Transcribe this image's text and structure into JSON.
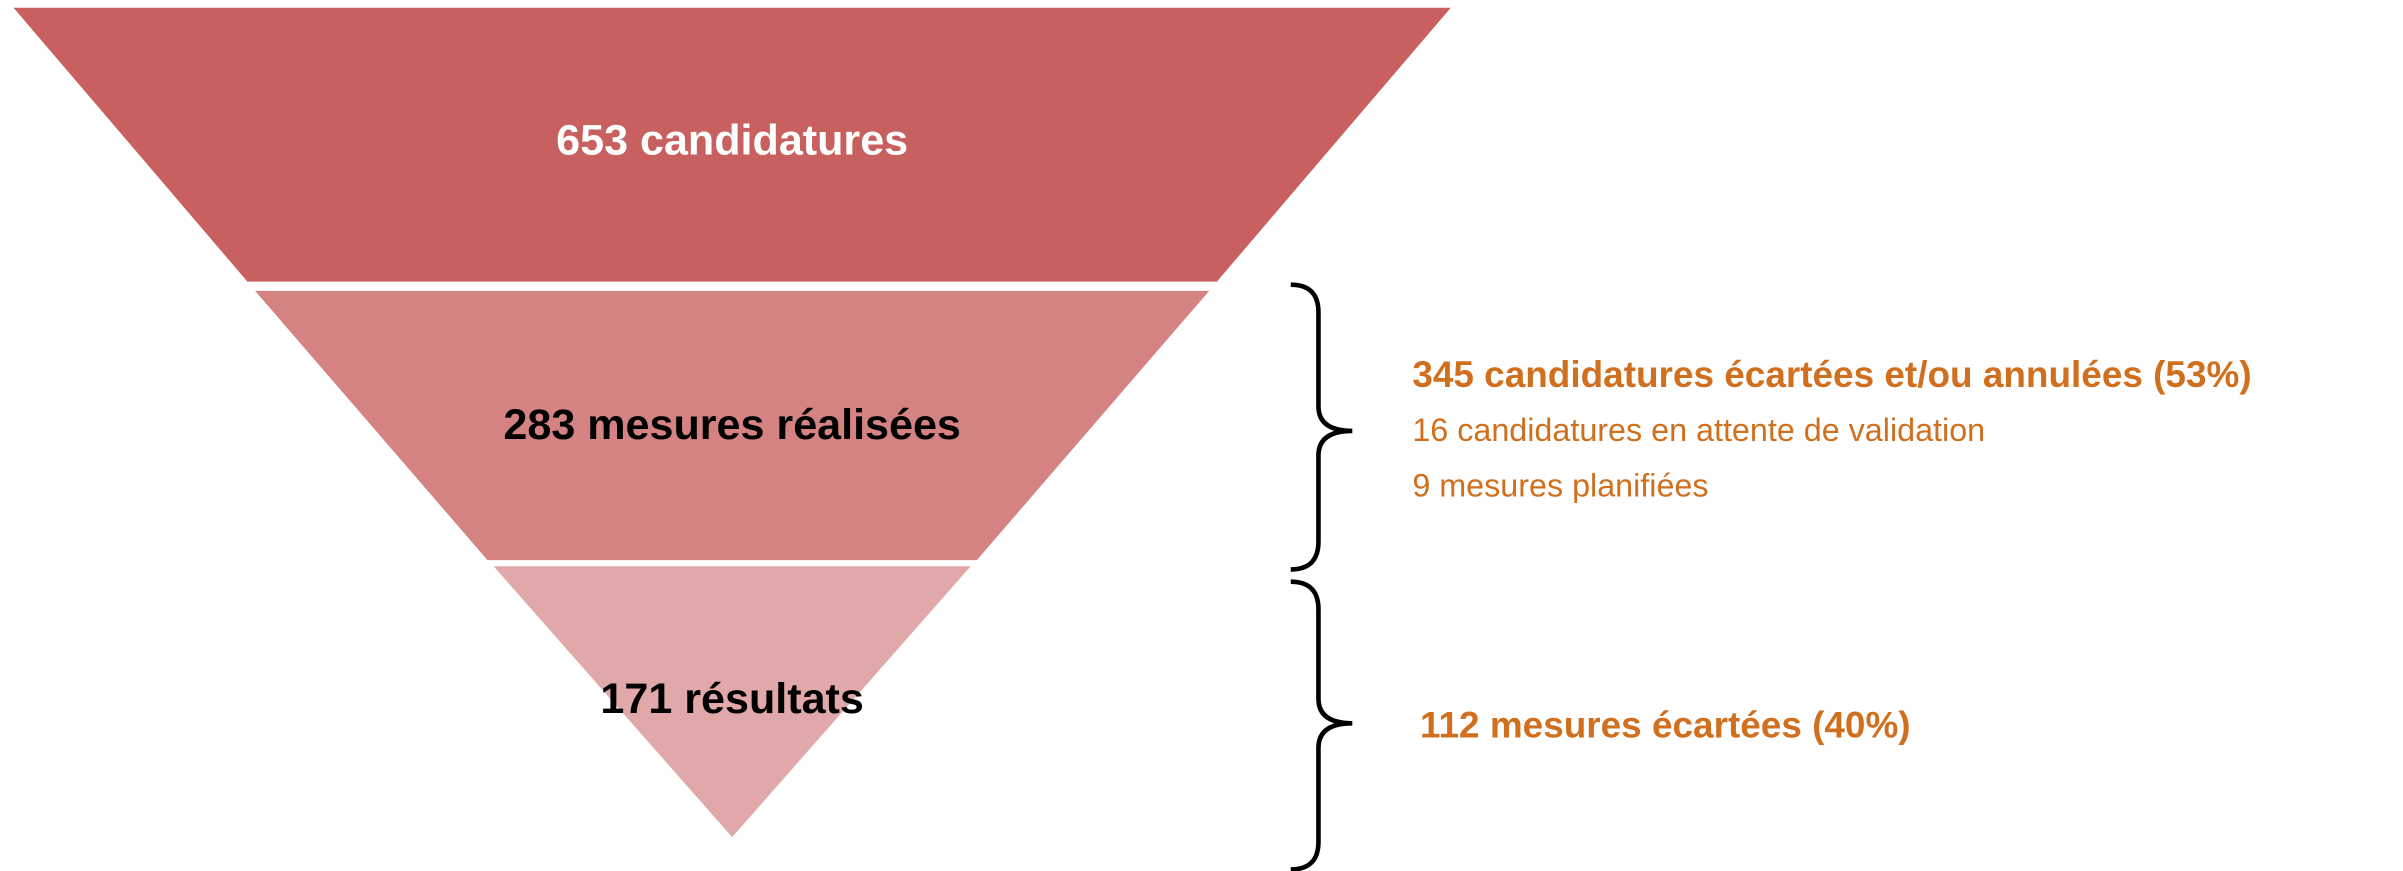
{
  "funnel": {
    "stages": [
      {
        "label": "653 candidatures"
      },
      {
        "label": "283 mesures réalisées"
      },
      {
        "label": "171 résultats"
      }
    ]
  },
  "notes": [
    {
      "lines": [
        "345 candidatures écartées et/ou annulées (53%)",
        "16 candidatures en attente de validation",
        "9 mesures planifiées"
      ]
    },
    {
      "lines": [
        "112 mesures écartées (40%)"
      ]
    }
  ]
}
